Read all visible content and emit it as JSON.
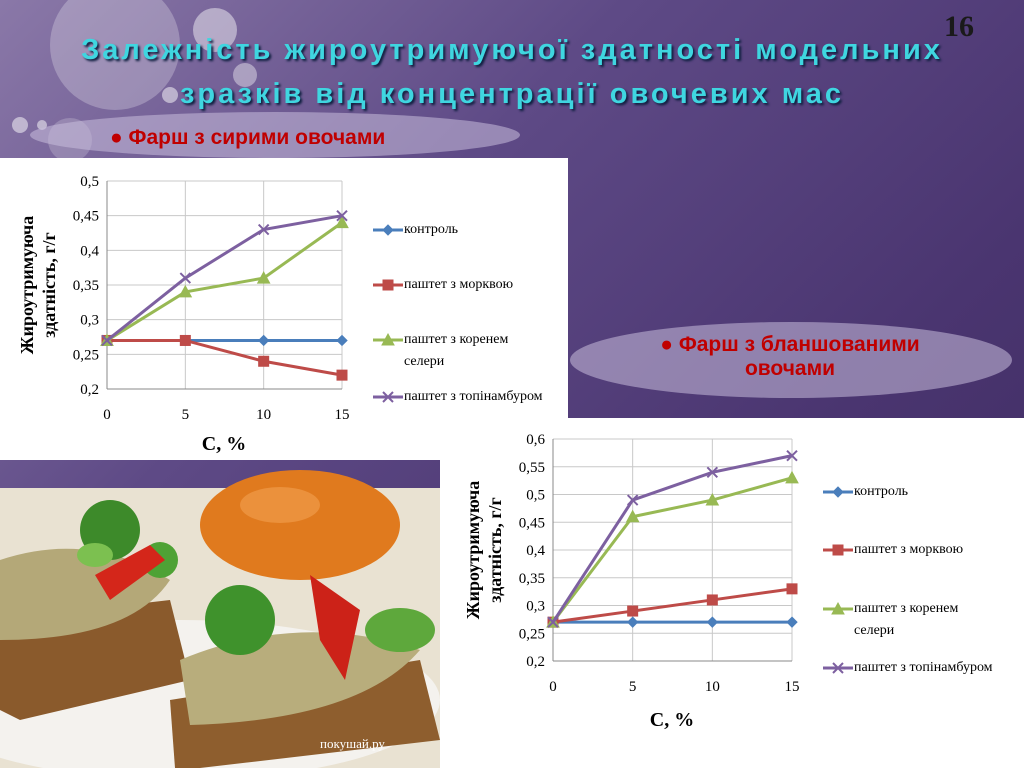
{
  "slide": {
    "title_line1": "Залежність жироутримуючої здатності модельних",
    "title_line2": "зразків від концентрації овочевих мас",
    "page_number": "16",
    "bullet1": "Фарш з сирими овочами",
    "bullet2": "Фарш з бланшованими овочами",
    "watermark": "покушай.ру"
  },
  "chart_data": [
    {
      "type": "line",
      "y_label": "Жироутримуюча здатність, г/г",
      "x_label": "C, %",
      "x": [
        0,
        5,
        10,
        15
      ],
      "xlim": [
        0,
        15
      ],
      "xticks": [
        0,
        5,
        10,
        15
      ],
      "ylim": [
        0.2,
        0.5
      ],
      "yticks": [
        {
          "value": 0.2,
          "label": "0,2"
        },
        {
          "value": 0.25,
          "label": "0,25"
        },
        {
          "value": 0.3,
          "label": "0,3"
        },
        {
          "value": 0.35,
          "label": "0,35"
        },
        {
          "value": 0.4,
          "label": "0,4"
        },
        {
          "value": 0.45,
          "label": "0,45"
        },
        {
          "value": 0.5,
          "label": "0,5"
        }
      ],
      "grid": true,
      "series": [
        {
          "name": "контроль",
          "color": "#4a7ebb",
          "values": [
            0.27,
            0.27,
            0.27,
            0.27
          ]
        },
        {
          "name": "паштет з морквою",
          "color": "#be4b48",
          "values": [
            0.27,
            0.27,
            0.24,
            0.22
          ]
        },
        {
          "name": "паштет з коренем селери",
          "color": "#98b954",
          "values": [
            0.27,
            0.34,
            0.36,
            0.44
          ]
        },
        {
          "name": "паштет з топінамбуром",
          "color": "#7d60a0",
          "values": [
            0.27,
            0.36,
            0.43,
            0.45
          ]
        }
      ]
    },
    {
      "type": "line",
      "y_label": "Жироутримуюча здатність, г/г",
      "x_label": "C, %",
      "x": [
        0,
        5,
        10,
        15
      ],
      "xlim": [
        0,
        15
      ],
      "xticks": [
        0,
        5,
        10,
        15
      ],
      "ylim": [
        0.2,
        0.6
      ],
      "yticks": [
        {
          "value": 0.2,
          "label": "0,2"
        },
        {
          "value": 0.25,
          "label": "0,25"
        },
        {
          "value": 0.3,
          "label": "0,3"
        },
        {
          "value": 0.35,
          "label": "0,35"
        },
        {
          "value": 0.4,
          "label": "0,4"
        },
        {
          "value": 0.45,
          "label": "0,45"
        },
        {
          "value": 0.5,
          "label": "0,5"
        },
        {
          "value": 0.55,
          "label": "0,55"
        },
        {
          "value": 0.6,
          "label": "0,6"
        }
      ],
      "grid": true,
      "series": [
        {
          "name": "контроль",
          "color": "#4a7ebb",
          "values": [
            0.27,
            0.27,
            0.27,
            0.27
          ]
        },
        {
          "name": "паштет з морквою",
          "color": "#be4b48",
          "values": [
            0.27,
            0.29,
            0.31,
            0.33
          ]
        },
        {
          "name": "паштет з коренем селери",
          "color": "#98b954",
          "values": [
            0.27,
            0.46,
            0.49,
            0.53
          ]
        },
        {
          "name": "паштет з топінамбуром",
          "color": "#7d60a0",
          "values": [
            0.27,
            0.49,
            0.54,
            0.57
          ]
        }
      ]
    }
  ]
}
